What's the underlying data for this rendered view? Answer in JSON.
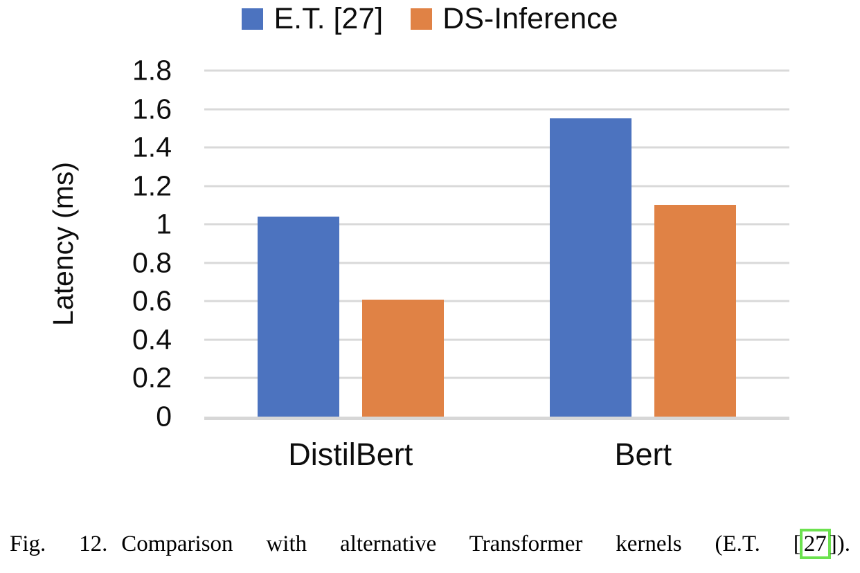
{
  "chart_data": {
    "type": "bar",
    "title": "",
    "categories": [
      "DistilBert",
      "Bert"
    ],
    "series": [
      {
        "name": "E.T. [27]",
        "color": "#4c73bf",
        "values": [
          1.04,
          1.55
        ]
      },
      {
        "name": "DS-Inference",
        "color": "#e08245",
        "values": [
          0.61,
          1.1
        ]
      }
    ],
    "xlabel": "",
    "ylabel": "Latency (ms)",
    "ylim": [
      0,
      1.8
    ],
    "ytick_step": 0.2,
    "ytick_labels": [
      "1.8",
      "1.6",
      "1.4",
      "1.2",
      "1",
      "0.8",
      "0.6",
      "0.4",
      "0.2",
      "0"
    ],
    "grid": "horizontal-only",
    "legend_position": "top-center"
  },
  "caption": {
    "fig_label": "Fig. 12.",
    "text_before": "Comparison with alternative Transformer kernels (E.T. [",
    "citation": "27",
    "text_after": "]).",
    "citation_box_color": "#6ce24f"
  },
  "colors": {
    "background": "#ffffff",
    "gridline": "#d9d9d9",
    "axis_line": "#d7d7d7",
    "text": "#0d0d0d"
  }
}
